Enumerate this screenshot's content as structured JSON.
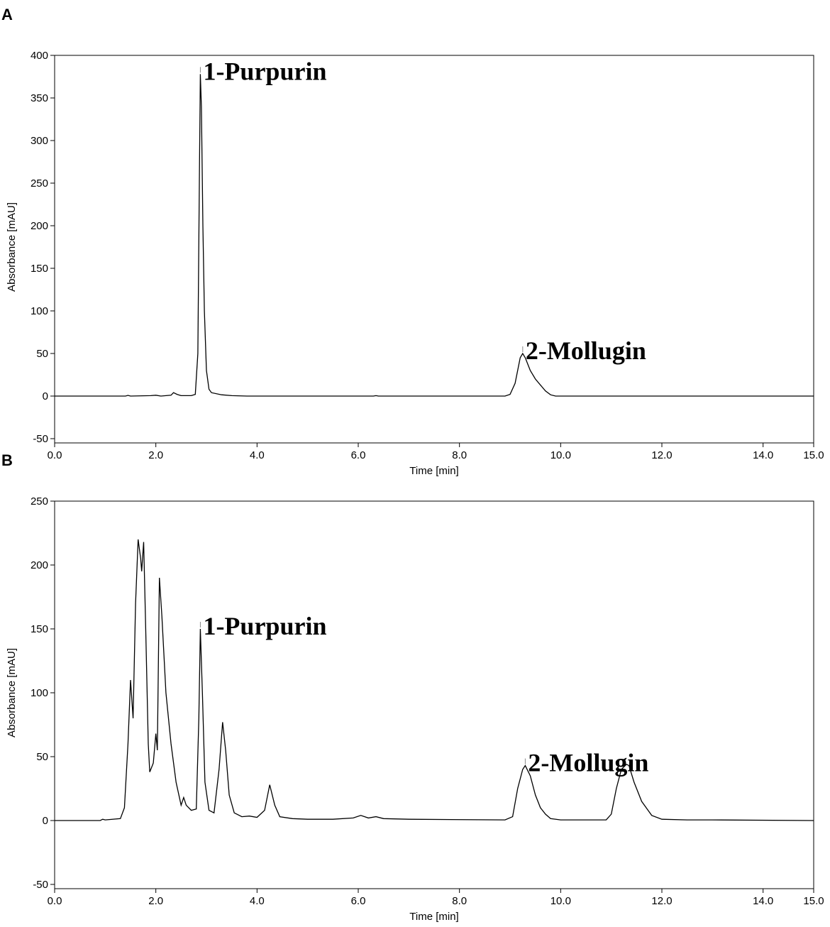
{
  "chart_data": [
    {
      "type": "line",
      "panel": "A",
      "xlabel": "Time [min]",
      "ylabel": "Absorbance [mAU]",
      "color": "#000000",
      "xlim": [
        0,
        15
      ],
      "ylim": [
        -50,
        400
      ],
      "xticks": [
        {
          "value": 0,
          "label": "0.0"
        },
        {
          "value": 2,
          "label": "2.0"
        },
        {
          "value": 4,
          "label": "4.0"
        },
        {
          "value": 6,
          "label": "6.0"
        },
        {
          "value": 8,
          "label": "8.0"
        },
        {
          "value": 10,
          "label": "10.0"
        },
        {
          "value": 12,
          "label": "12.0"
        },
        {
          "value": 14,
          "label": "14.0"
        },
        {
          "value": 15,
          "label": "15.0"
        }
      ],
      "yticks": [
        -50,
        0,
        50,
        100,
        150,
        200,
        250,
        300,
        350,
        400
      ],
      "x": [
        0,
        1.4,
        1.45,
        1.5,
        1.9,
        2.0,
        2.1,
        2.3,
        2.35,
        2.42,
        2.5,
        2.7,
        2.78,
        2.83,
        2.86,
        2.88,
        2.9,
        2.93,
        2.96,
        3.0,
        3.05,
        3.1,
        3.3,
        3.5,
        3.8,
        6.3,
        6.35,
        6.4,
        8.9,
        9.0,
        9.1,
        9.2,
        9.25,
        9.3,
        9.4,
        9.5,
        9.6,
        9.7,
        9.8,
        9.9,
        15
      ],
      "values": [
        0,
        0,
        0.8,
        0,
        0.5,
        1,
        0,
        1,
        4,
        2,
        0.5,
        0.5,
        2,
        50,
        250,
        378,
        340,
        200,
        100,
        30,
        8,
        4,
        1.5,
        0.5,
        0,
        0,
        0.5,
        0,
        0,
        2,
        15,
        45,
        50,
        45,
        30,
        20,
        13,
        6,
        1.5,
        0,
        0
      ],
      "annotations": [
        {
          "text": "1-Purpurin",
          "x": 2.88,
          "y": 378
        },
        {
          "text": "2-Mollugin",
          "x": 9.25,
          "y": 50
        }
      ]
    },
    {
      "type": "line",
      "panel": "B",
      "xlabel": "Time [min]",
      "ylabel": "Absorbance [mAU]",
      "color": "#000000",
      "xlim": [
        0,
        15
      ],
      "ylim": [
        -50,
        250
      ],
      "xticks": [
        {
          "value": 0,
          "label": "0.0"
        },
        {
          "value": 2,
          "label": "2.0"
        },
        {
          "value": 4,
          "label": "4.0"
        },
        {
          "value": 6,
          "label": "6.0"
        },
        {
          "value": 8,
          "label": "8.0"
        },
        {
          "value": 10,
          "label": "10.0"
        },
        {
          "value": 12,
          "label": "12.0"
        },
        {
          "value": 14,
          "label": "14.0"
        },
        {
          "value": 15,
          "label": "15.0"
        }
      ],
      "yticks": [
        -50,
        0,
        50,
        100,
        150,
        200,
        250
      ],
      "x": [
        0,
        0.9,
        0.95,
        1.0,
        1.3,
        1.38,
        1.45,
        1.5,
        1.55,
        1.6,
        1.65,
        1.7,
        1.72,
        1.76,
        1.8,
        1.85,
        1.88,
        1.92,
        1.95,
        2.0,
        2.03,
        2.07,
        2.12,
        2.2,
        2.3,
        2.4,
        2.5,
        2.55,
        2.6,
        2.7,
        2.8,
        2.85,
        2.88,
        2.92,
        2.97,
        3.05,
        3.15,
        3.25,
        3.32,
        3.38,
        3.45,
        3.55,
        3.7,
        3.85,
        4.0,
        4.15,
        4.25,
        4.35,
        4.45,
        4.7,
        5.0,
        5.5,
        5.9,
        6.05,
        6.2,
        6.35,
        6.5,
        7,
        8.9,
        9.05,
        9.15,
        9.25,
        9.3,
        9.4,
        9.5,
        9.6,
        9.7,
        9.8,
        10,
        10.9,
        11.0,
        11.1,
        11.2,
        11.3,
        11.35,
        11.45,
        11.6,
        11.8,
        12,
        12.5,
        13,
        15
      ],
      "values": [
        0,
        0,
        1,
        0.5,
        1.5,
        10,
        60,
        110,
        80,
        170,
        220,
        205,
        195,
        218,
        150,
        60,
        38,
        42,
        45,
        68,
        55,
        190,
        160,
        100,
        60,
        30,
        12,
        18,
        12,
        8,
        9,
        80,
        150,
        100,
        30,
        8,
        6,
        40,
        77,
        55,
        20,
        6,
        3,
        3.5,
        2.5,
        8,
        28,
        12,
        3,
        1.5,
        1,
        1,
        2,
        4,
        2,
        3,
        1.5,
        1,
        0.5,
        3,
        25,
        40,
        43,
        35,
        20,
        10,
        5,
        1.5,
        0.5,
        0.5,
        5,
        25,
        40,
        44,
        43,
        30,
        15,
        4,
        1,
        0.5,
        0.5,
        0
      ],
      "annotations": [
        {
          "text": "1-Purpurin",
          "x": 2.88,
          "y": 150
        },
        {
          "text": "2-Mollugin",
          "x": 9.3,
          "y": 43
        }
      ]
    }
  ]
}
